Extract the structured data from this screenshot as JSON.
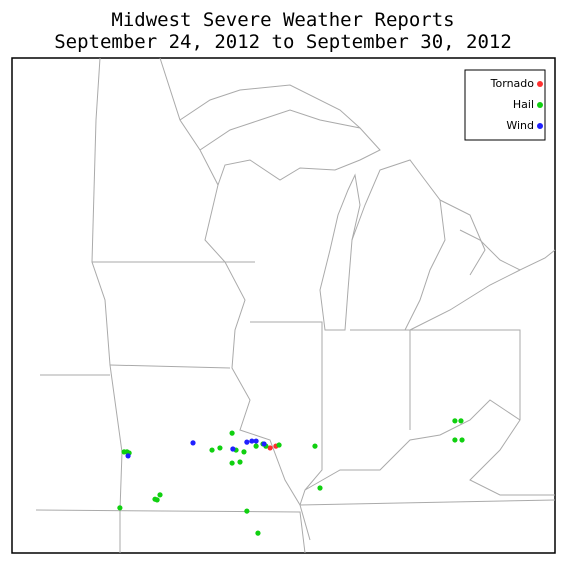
{
  "chart_data": {
    "type": "map",
    "title": [
      "Midwest Severe Weather Reports",
      "September 24, 2012 to September 30, 2012"
    ],
    "series": [
      {
        "name": "Tornado",
        "color": "#ff3030",
        "lon": [
          -89.99,
          -89.77
        ],
        "lat": [
          38.35,
          38.4
        ]
      },
      {
        "name": "Hail",
        "color": "#10d010",
        "lon": [
          -95.52,
          -95.41,
          -95.33,
          -91.43,
          -91.89,
          -92.19,
          -91.28,
          -90.98,
          -91.13,
          -91.43,
          -90.52,
          -90.26,
          -90.15,
          -89.65,
          -88.29,
          -88.1,
          -94.35,
          -94.16,
          -94.27,
          -95.68,
          -90.87,
          -90.45,
          -82.99,
          -82.76,
          -82.99,
          -82.72
        ],
        "lat": [
          38.24,
          38.24,
          38.21,
          38.76,
          38.35,
          38.29,
          38.29,
          38.24,
          37.96,
          37.93,
          38.4,
          38.46,
          38.4,
          38.43,
          38.4,
          37.24,
          36.93,
          37.05,
          36.91,
          36.69,
          36.6,
          35.99,
          39.1,
          39.1,
          38.57,
          38.57
        ]
      },
      {
        "name": "Wind",
        "color": "#2020ff",
        "lon": [
          -95.37,
          -92.91,
          -91.4,
          -90.87,
          -90.68,
          -90.52,
          -90.22
        ],
        "lat": [
          38.13,
          38.49,
          38.32,
          38.51,
          38.54,
          38.54,
          38.46
        ]
      }
    ]
  }
}
